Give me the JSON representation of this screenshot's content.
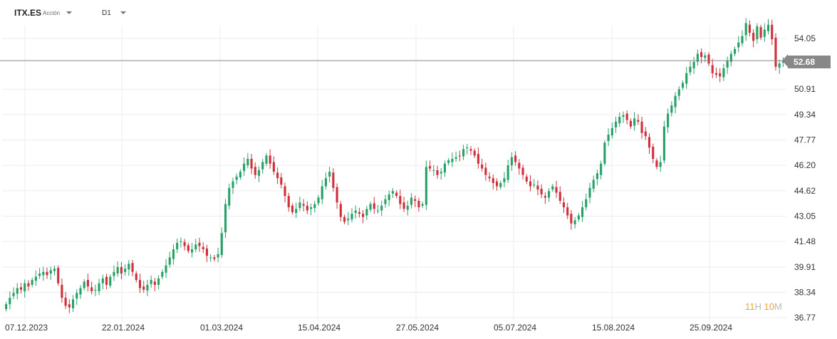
{
  "header": {
    "symbol": "ITX.ES",
    "instrument_type": "Acción",
    "timeframe": "D1"
  },
  "current_price": "52.68",
  "timer": {
    "hours": "11",
    "h_unit": "H",
    "minutes": "10",
    "m_unit": "M"
  },
  "colors": {
    "up": "#26a269",
    "down": "#d0303c",
    "grid": "#ececec",
    "axis_text": "#333333",
    "price_line": "#888888"
  },
  "chart_data": {
    "type": "candlestick",
    "x_tick_labels": [
      "07.12.2023",
      "22.01.2024",
      "01.03.2024",
      "15.04.2024",
      "27.05.2024",
      "05.07.2024",
      "15.08.2024",
      "25.09.2024"
    ],
    "y_tick_labels": [
      "54.05",
      "50.91",
      "49.34",
      "47.77",
      "46.20",
      "44.62",
      "43.05",
      "41.48",
      "39.91",
      "38.34",
      "36.77"
    ],
    "ylim": [
      36.77,
      55.4
    ],
    "grid": true,
    "current_price": 52.68,
    "closes": [
      37.6,
      38.0,
      38.3,
      38.6,
      38.5,
      38.9,
      38.7,
      39.1,
      39.3,
      39.5,
      39.6,
      39.4,
      39.7,
      39.8,
      38.9,
      38.0,
      37.5,
      37.4,
      37.9,
      38.3,
      38.6,
      39.0,
      38.7,
      38.4,
      38.5,
      38.9,
      39.2,
      38.8,
      39.3,
      39.6,
      39.9,
      39.5,
      39.8,
      40.1,
      39.6,
      39.1,
      38.6,
      38.5,
      38.8,
      39.1,
      38.8,
      39.2,
      39.6,
      40.0,
      40.5,
      41.0,
      41.4,
      41.5,
      41.2,
      40.9,
      41.0,
      41.3,
      41.2,
      41.0,
      40.6,
      40.5,
      40.4,
      40.7,
      42.0,
      43.8,
      44.8,
      45.2,
      45.5,
      45.8,
      46.3,
      46.6,
      46.0,
      45.6,
      45.9,
      46.4,
      46.8,
      46.3,
      45.8,
      45.4,
      45.0,
      44.3,
      43.6,
      43.3,
      43.5,
      43.9,
      43.7,
      43.4,
      43.6,
      43.8,
      44.2,
      44.9,
      45.4,
      45.8,
      44.8,
      43.9,
      43.0,
      42.7,
      42.9,
      43.2,
      43.4,
      43.2,
      43.0,
      43.5,
      43.8,
      43.5,
      43.4,
      43.7,
      44.1,
      44.4,
      44.6,
      44.3,
      43.8,
      43.5,
      43.7,
      44.2,
      44.0,
      43.6,
      43.8,
      46.1,
      46.0,
      45.9,
      45.6,
      45.8,
      46.3,
      46.5,
      46.6,
      46.7,
      46.8,
      47.2,
      47.3,
      47.1,
      46.8,
      46.3,
      46.0,
      45.6,
      45.4,
      45.1,
      44.9,
      45.1,
      45.4,
      46.2,
      46.7,
      46.4,
      46.0,
      45.6,
      45.2,
      44.9,
      45.0,
      44.7,
      44.4,
      44.2,
      44.6,
      44.9,
      44.5,
      44.0,
      43.6,
      43.1,
      42.6,
      42.8,
      43.1,
      43.6,
      44.1,
      44.8,
      45.3,
      45.7,
      46.3,
      47.6,
      48.1,
      48.5,
      48.9,
      49.2,
      49.3,
      49.0,
      48.6,
      49.1,
      48.9,
      48.2,
      48.0,
      47.3,
      46.6,
      46.1,
      46.4,
      48.6,
      49.4,
      49.9,
      50.5,
      50.9,
      51.3,
      51.9,
      52.3,
      52.6,
      53.1,
      52.9,
      53.0,
      52.5,
      51.9,
      51.8,
      51.7,
      52.2,
      52.7,
      53.1,
      53.4,
      53.8,
      54.2,
      55.0,
      54.4,
      53.9,
      54.8,
      54.1,
      54.6,
      54.9,
      54.0,
      52.3,
      52.5,
      52.7
    ],
    "series": [
      {
        "name": "",
        "values": []
      }
    ]
  }
}
